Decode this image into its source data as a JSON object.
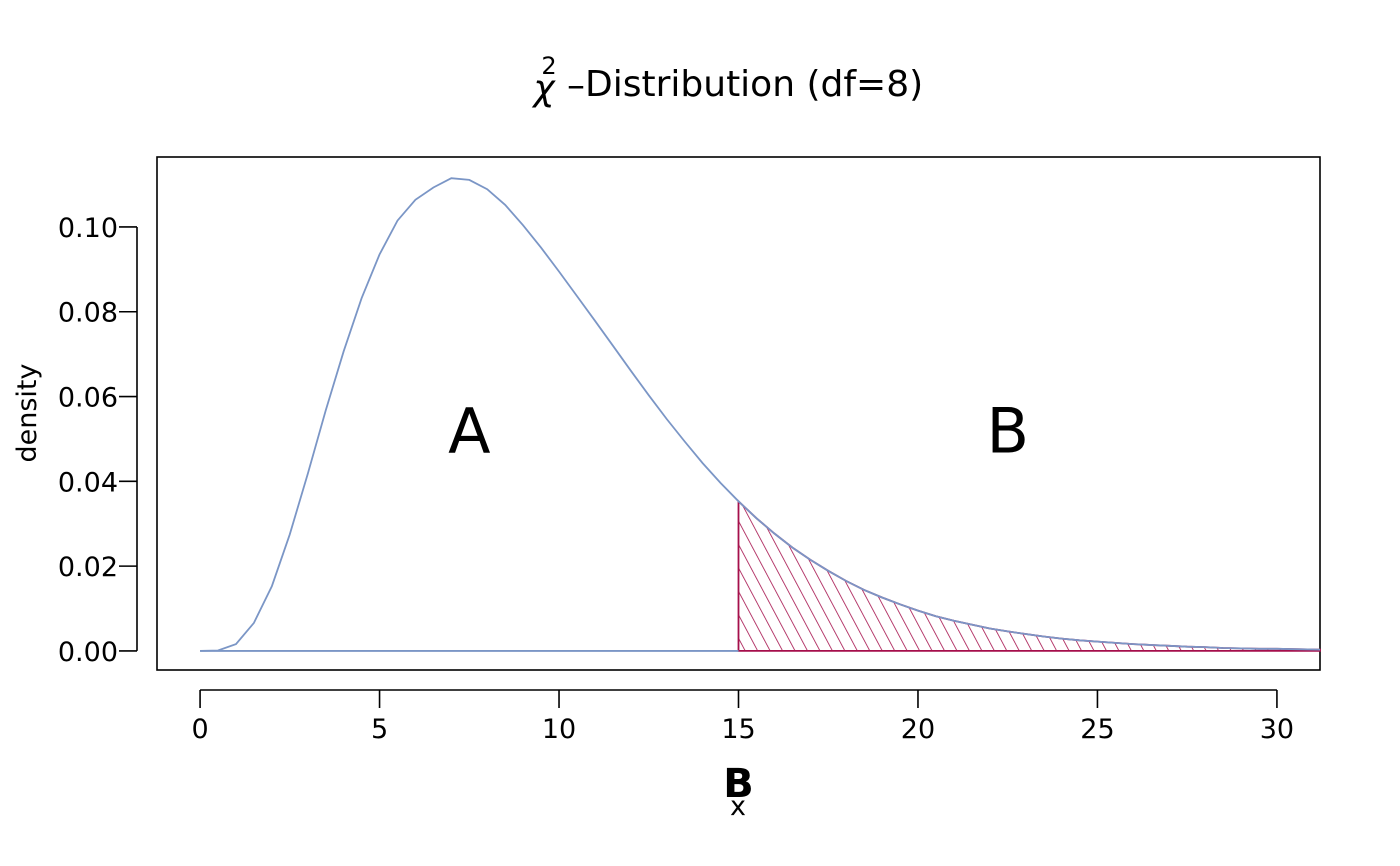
{
  "chart_data": {
    "type": "area",
    "title": {
      "symbol": "χ",
      "superscript": "2",
      "dash": "–",
      "text": "Distribution (df=8)"
    },
    "xlabel": "x",
    "ylabel": "density",
    "xlim": [
      -1.2,
      31.2
    ],
    "ylim": [
      -0.0045,
      0.1165
    ],
    "x_ticks": [
      0,
      5,
      10,
      15,
      20,
      25,
      30
    ],
    "x_tick_labels": [
      "0",
      "5",
      "10",
      "15",
      "20",
      "25",
      "30"
    ],
    "y_ticks": [
      0.0,
      0.02,
      0.04,
      0.06,
      0.08,
      0.1
    ],
    "y_tick_labels": [
      "0.00",
      "0.02",
      "0.04",
      "0.06",
      "0.08",
      "0.10"
    ],
    "grid": false,
    "series": [
      {
        "role": "density-curve",
        "x": [
          0,
          0.5,
          1,
          1.5,
          2,
          2.5,
          3,
          3.5,
          4,
          4.5,
          5,
          5.5,
          6,
          6.5,
          7,
          7.5,
          8,
          8.5,
          9,
          9.5,
          10,
          10.5,
          11,
          11.5,
          12,
          12.5,
          13,
          13.5,
          14,
          14.5,
          15,
          15.5,
          16,
          16.5,
          17,
          17.5,
          18,
          18.5,
          19,
          19.5,
          20,
          20.5,
          21,
          21.5,
          22,
          22.5,
          23,
          23.5,
          24,
          24.5,
          25,
          25.5,
          26,
          26.5,
          27,
          27.5,
          28,
          28.5,
          29,
          29.5,
          30,
          30.5,
          31.2
        ],
        "y": [
          0,
          0.0001,
          0.0016,
          0.0066,
          0.0153,
          0.0275,
          0.0418,
          0.0567,
          0.0707,
          0.0832,
          0.0935,
          0.1015,
          0.1064,
          0.1093,
          0.1115,
          0.1111,
          0.1089,
          0.1052,
          0.1004,
          0.0951,
          0.0895,
          0.0837,
          0.0779,
          0.072,
          0.0661,
          0.0603,
          0.0547,
          0.0494,
          0.0443,
          0.0396,
          0.0353,
          0.0313,
          0.0277,
          0.0244,
          0.0215,
          0.0189,
          0.0165,
          0.0144,
          0.0126,
          0.011,
          0.0095,
          0.0082,
          0.0071,
          0.0062,
          0.0053,
          0.0046,
          0.004,
          0.0034,
          0.0029,
          0.0025,
          0.0022,
          0.0019,
          0.0016,
          0.0014,
          0.0012,
          0.001,
          0.0009,
          0.0007,
          0.0006,
          0.0005,
          0.0005,
          0.0004,
          0.0003
        ]
      }
    ],
    "shaded_region": {
      "from_x": 15,
      "to_x": 31.2,
      "fill": "hatched"
    },
    "annotations": [
      {
        "name": "region-a-label",
        "text": "A",
        "x": 7.5,
        "y": 0.052
      },
      {
        "name": "region-b-label",
        "text": "B",
        "x": 22.5,
        "y": 0.052
      }
    ],
    "critical_marker": {
      "text": "B",
      "x": 15
    },
    "colors": {
      "curve": "#7b96c6",
      "baseline": "#7b96c6",
      "shade": "#a50f4b",
      "axis": "#000000"
    }
  }
}
